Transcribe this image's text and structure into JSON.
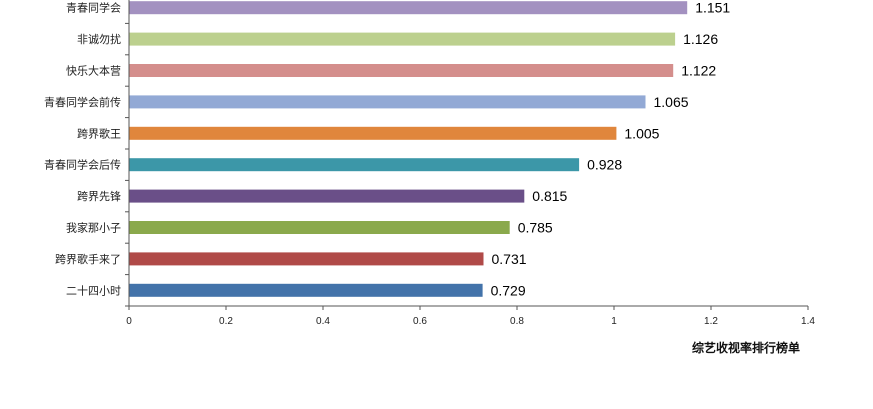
{
  "chart_data": {
    "type": "bar",
    "orientation": "horizontal",
    "categories": [
      "青春同学会",
      "非诚勿扰",
      "快乐大本营",
      "青春同学会前传",
      "跨界歌王",
      "青春同学会后传",
      "跨界先锋",
      "我家那小子",
      "跨界歌手来了",
      "二十四小时"
    ],
    "values": [
      1.151,
      1.126,
      1.122,
      1.065,
      1.005,
      0.928,
      0.815,
      0.785,
      0.731,
      0.729
    ],
    "value_labels": [
      "1.151",
      "1.126",
      "1.122",
      "1.065",
      "1.005",
      "0.928",
      "0.815",
      "0.785",
      "0.731",
      "0.729"
    ],
    "colors": [
      "#a391c0",
      "#bcd08e",
      "#d48e8c",
      "#92a9d5",
      "#e0863c",
      "#3c97a8",
      "#6a4f88",
      "#8aa94c",
      "#b04a48",
      "#4373aa"
    ],
    "xlim": [
      0,
      1.4
    ],
    "xticks": [
      "0",
      "0.2",
      "0.4",
      "0.6",
      "0.8",
      "1",
      "1.2",
      "1.4"
    ],
    "xtick_values": [
      0,
      0.2,
      0.4,
      0.6,
      0.8,
      1.0,
      1.2,
      1.4
    ],
    "xlabel": "综艺收视率排行榜单",
    "title": "",
    "grid": false,
    "legend": "none"
  }
}
